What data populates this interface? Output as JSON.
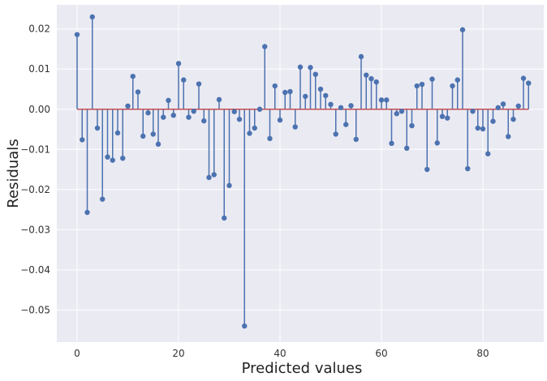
{
  "chart_data": {
    "type": "stem",
    "title": "",
    "xlabel": "Predicted values",
    "ylabel": "Residuals",
    "xlim": [
      -4,
      92
    ],
    "ylim": [
      -0.058,
      0.026
    ],
    "xticks": [
      0,
      20,
      40,
      60,
      80
    ],
    "xtick_labels": [
      "0",
      "20",
      "40",
      "60",
      "80"
    ],
    "yticks": [
      0.02,
      0.01,
      0.0,
      -0.01,
      -0.02,
      -0.03,
      -0.04,
      -0.05
    ],
    "ytick_labels": [
      "0.02",
      "0.01",
      "0.00",
      "−0.01",
      "−0.02",
      "−0.03",
      "−0.04",
      "−0.05"
    ],
    "grid": true,
    "baseline": 0.0,
    "colors": {
      "plot_background": "#eaeaf2",
      "grid": "#ffffff",
      "stem": "#4c72b0",
      "baseline": "#c44e52"
    },
    "x": [
      0,
      1,
      2,
      3,
      4,
      5,
      6,
      7,
      8,
      9,
      10,
      11,
      12,
      13,
      14,
      15,
      16,
      17,
      18,
      19,
      20,
      21,
      22,
      23,
      24,
      25,
      26,
      27,
      28,
      29,
      30,
      31,
      32,
      33,
      34,
      35,
      36,
      37,
      38,
      39,
      40,
      41,
      42,
      43,
      44,
      45,
      46,
      47,
      48,
      49,
      50,
      51,
      52,
      53,
      54,
      55,
      56,
      57,
      58,
      59,
      60,
      61,
      62,
      63,
      64,
      65,
      66,
      67,
      68,
      69,
      70,
      71,
      72,
      73,
      74,
      75,
      76,
      77,
      78,
      79,
      80,
      81,
      82,
      83,
      84,
      85,
      86,
      87,
      88,
      89
    ],
    "values": [
      0.0186,
      -0.0076,
      -0.0257,
      0.023,
      -0.0047,
      -0.0224,
      -0.0119,
      -0.0127,
      -0.0059,
      -0.0122,
      0.0008,
      0.0082,
      0.0043,
      -0.0067,
      -0.0009,
      -0.0062,
      -0.0087,
      -0.002,
      0.0022,
      -0.0015,
      0.0114,
      0.0073,
      -0.002,
      -0.0005,
      0.0063,
      -0.0029,
      -0.017,
      -0.0163,
      0.0024,
      -0.0271,
      -0.019,
      -0.0006,
      -0.0025,
      -0.054,
      -0.006,
      -0.0047,
      0.0,
      0.0156,
      -0.0073,
      0.0058,
      -0.0027,
      0.0042,
      0.0044,
      -0.0044,
      0.0105,
      0.0032,
      0.0104,
      0.0087,
      0.005,
      0.0034,
      0.0012,
      -0.0062,
      0.0004,
      -0.0038,
      0.0009,
      -0.0075,
      0.0131,
      0.0085,
      0.0076,
      0.0068,
      0.0023,
      0.0023,
      -0.0085,
      -0.0011,
      -0.0005,
      -0.0097,
      -0.0041,
      0.0058,
      0.0062,
      -0.015,
      0.0075,
      -0.0084,
      -0.0018,
      -0.0022,
      0.0058,
      0.0073,
      0.0198,
      -0.0148,
      -0.0005,
      -0.0047,
      -0.0049,
      -0.0111,
      -0.003,
      0.0004,
      0.0013,
      -0.0068,
      -0.0025,
      0.0008,
      0.0077,
      0.0065
    ]
  }
}
